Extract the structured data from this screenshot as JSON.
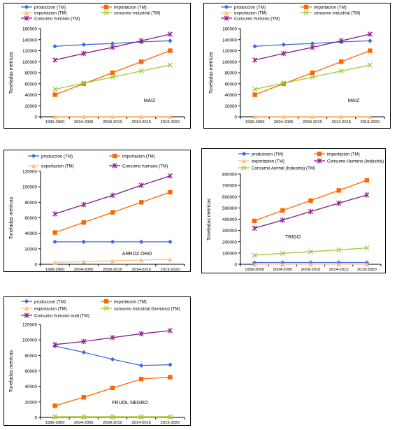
{
  "chart_data": [
    {
      "type": "line",
      "title": "MAIZ",
      "ylabel": "Toneladas metricas",
      "categories": [
        "1999-2000",
        "2004-2005",
        "2009-2010",
        "2014-2015",
        "2019-2020"
      ],
      "ylim": [
        0,
        160000
      ],
      "yticks": [
        "0",
        "20000",
        "40000",
        "60000",
        "80000",
        "100000",
        "120000",
        "140000",
        "160000"
      ],
      "legend_position": "top",
      "series": [
        {
          "name": "produccion (TM)",
          "color": "#4169E1",
          "marker": "diamond",
          "values": [
            128000,
            131000,
            133000,
            136000,
            138000
          ]
        },
        {
          "name": "importacion (TM)",
          "color": "#FF6600",
          "marker": "square",
          "values": [
            40000,
            60000,
            80000,
            100000,
            120000
          ]
        },
        {
          "name": "exportacion (TM)",
          "color": "#FFC080",
          "marker": "triangle",
          "values": [
            500,
            500,
            500,
            500,
            500
          ]
        },
        {
          "name": "consumo industrial (TM)",
          "color": "#9ACD32",
          "marker": "x",
          "values": [
            50000,
            61000,
            72000,
            83000,
            94000
          ]
        },
        {
          "name": "Consumo humano (TM)",
          "color": "#8B1A89",
          "marker": "star",
          "values": [
            103000,
            115000,
            126000,
            138000,
            150000
          ]
        }
      ]
    },
    {
      "type": "line",
      "title": "MAIZ",
      "ylabel": "Toneladas metricas",
      "categories": [
        "1999-2000",
        "2004-2005",
        "2009-2010",
        "2014-2015",
        "2019-2020"
      ],
      "ylim": [
        0,
        160000
      ],
      "yticks": [
        "0",
        "20000",
        "40000",
        "60000",
        "80000",
        "100000",
        "120000",
        "140000",
        "160000"
      ],
      "legend_position": "top",
      "series": [
        {
          "name": "produccion (TM)",
          "color": "#4169E1",
          "marker": "diamond",
          "values": [
            128000,
            131000,
            133000,
            136000,
            138000
          ]
        },
        {
          "name": "importacion (TM)",
          "color": "#FF6600",
          "marker": "square",
          "values": [
            40000,
            60000,
            80000,
            100000,
            120000
          ]
        },
        {
          "name": "exportacion (TM)",
          "color": "#FFC080",
          "marker": "triangle",
          "values": [
            500,
            500,
            500,
            500,
            500
          ]
        },
        {
          "name": "consumo industrial (TM)",
          "color": "#9ACD32",
          "marker": "x",
          "values": [
            50000,
            61000,
            72000,
            83000,
            94000
          ]
        },
        {
          "name": "Consumo humano (TM)",
          "color": "#8B1A89",
          "marker": "star",
          "values": [
            103000,
            115000,
            126000,
            138000,
            150000
          ]
        }
      ]
    },
    {
      "type": "line",
      "title": "ARROZ ORO",
      "ylabel": "Toneladas metricas",
      "categories": [
        "1999-2000",
        "2004-2005",
        "2009-2010",
        "2014-2015",
        "2019-2020"
      ],
      "ylim": [
        0,
        120000
      ],
      "yticks": [
        "0",
        "20000",
        "40000",
        "60000",
        "80000",
        "100000",
        "120000"
      ],
      "legend_position": "top",
      "series": [
        {
          "name": "produccion (TM)",
          "color": "#4169E1",
          "marker": "diamond",
          "values": [
            29000,
            29000,
            29000,
            29000,
            29000
          ]
        },
        {
          "name": "importacion (TM)",
          "color": "#FF6600",
          "marker": "square",
          "values": [
            41000,
            54000,
            67000,
            80000,
            93000
          ]
        },
        {
          "name": "exportacion (TM)",
          "color": "#FFC080",
          "marker": "triangle",
          "values": [
            2500,
            3500,
            4500,
            5500,
            6500
          ]
        },
        {
          "name": "Consumo humano (TM)",
          "color": "#8B1A89",
          "marker": "star",
          "values": [
            65000,
            77000,
            89000,
            102000,
            114000
          ]
        }
      ]
    },
    {
      "type": "line",
      "title": "TRIGO",
      "ylabel": "Toneladas metricas",
      "categories": [
        "1999-2000",
        "2004-2005",
        "2009-2010",
        "2014-2015",
        "2019-2020"
      ],
      "ylim": [
        0,
        800000
      ],
      "yticks": [
        "0",
        "100000",
        "200000",
        "300000",
        "400000",
        "500000",
        "600000",
        "700000",
        "800000"
      ],
      "legend_position": "top",
      "series": [
        {
          "name": "produccion (TM)",
          "color": "#4169E1",
          "marker": "diamond",
          "values": [
            15000,
            15000,
            15000,
            15000,
            15000
          ]
        },
        {
          "name": "importacion (TM)",
          "color": "#FF6600",
          "marker": "square",
          "values": [
            385000,
            478000,
            565000,
            655000,
            745000
          ]
        },
        {
          "name": "exportacion (TM)",
          "color": "#FFC080",
          "marker": "triangle",
          "values": [
            0,
            0,
            0,
            0,
            0
          ]
        },
        {
          "name": "Consumo Humano (Industria) (TM)",
          "color": "#8B1A89",
          "marker": "star",
          "values": [
            320000,
            392000,
            468000,
            542000,
            615000
          ]
        },
        {
          "name": "Consumo Animal (Industria) (TM)",
          "color": "#9ACD32",
          "marker": "x",
          "values": [
            80000,
            97000,
            112000,
            128000,
            145000
          ]
        }
      ]
    },
    {
      "type": "line",
      "title": "FRIJOL NEGRO",
      "ylabel": "Toneladas metricas",
      "categories": [
        "1999-2000",
        "2004-2005",
        "2009-2010",
        "2014-2015",
        "2019-2020"
      ],
      "ylim": [
        0,
        120000
      ],
      "yticks": [
        "0",
        "20000",
        "40000",
        "60000",
        "80000",
        "100000",
        "120000"
      ],
      "legend_position": "top",
      "series": [
        {
          "name": "produccion (TM)",
          "color": "#4169E1",
          "marker": "diamond",
          "values": [
            92000,
            84000,
            75000,
            67000,
            68000
          ]
        },
        {
          "name": "importacion (TM)",
          "color": "#FF6600",
          "marker": "square",
          "values": [
            15000,
            26000,
            38000,
            49500,
            52000
          ]
        },
        {
          "name": "exportacion (TM)",
          "color": "#FFC080",
          "marker": "triangle",
          "values": [
            500,
            500,
            500,
            500,
            500
          ]
        },
        {
          "name": "consumo industrial (humano) (TM)",
          "color": "#9ACD32",
          "marker": "x",
          "values": [
            1000,
            1000,
            1000,
            1000,
            1000
          ]
        },
        {
          "name": "Consumo humano total (TM)",
          "color": "#8B1A89",
          "marker": "star",
          "values": [
            94000,
            98000,
            103000,
            108000,
            112000
          ]
        }
      ]
    }
  ]
}
